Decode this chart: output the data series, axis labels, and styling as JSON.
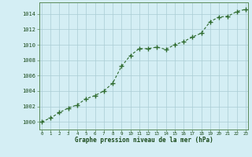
{
  "x": [
    0,
    1,
    2,
    3,
    4,
    5,
    6,
    7,
    8,
    9,
    10,
    11,
    12,
    13,
    14,
    15,
    16,
    17,
    18,
    19,
    20,
    21,
    22,
    23
  ],
  "y": [
    1000.0,
    1000.5,
    1001.2,
    1001.8,
    1002.2,
    1003.0,
    1003.4,
    1004.0,
    1005.0,
    1007.2,
    1008.6,
    1009.5,
    1009.5,
    1009.7,
    1009.4,
    1010.0,
    1010.4,
    1011.0,
    1011.5,
    1013.0,
    1013.6,
    1013.7,
    1014.3,
    1014.6
  ],
  "line_color": "#2d6a2d",
  "marker": "+",
  "bg_color": "#d4eef4",
  "grid_color": "#aaccd4",
  "xlabel": "Graphe pression niveau de la mer (hPa)",
  "xlabel_color": "#1a4a1a",
  "ytick_color": "#1a4a1a",
  "xtick_color": "#1a4a1a",
  "ylim": [
    999.0,
    1015.5
  ],
  "xlim": [
    -0.3,
    23.3
  ],
  "yticks": [
    1000,
    1002,
    1004,
    1006,
    1008,
    1010,
    1012,
    1014
  ],
  "xticks": [
    0,
    1,
    2,
    3,
    4,
    5,
    6,
    7,
    8,
    9,
    10,
    11,
    12,
    13,
    14,
    15,
    16,
    17,
    18,
    19,
    20,
    21,
    22,
    23
  ],
  "spine_color": "#5a8a5a"
}
